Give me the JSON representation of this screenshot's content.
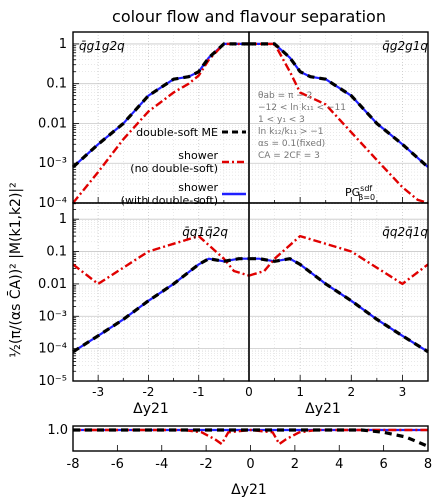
{
  "title": "colour flow and flavour separation",
  "ylabel": "½(π/(αs C̄A))² |M(k1,k2)|²",
  "xlabel": "Δy21",
  "panels": [
    {
      "label": "q̄g1g2q",
      "xlim": [
        -3.5,
        0
      ],
      "ylim_exp": [
        -4,
        0.3
      ]
    },
    {
      "label": "q̄g2g1q",
      "xlim": [
        0,
        3.5
      ],
      "ylim_exp": [
        -4,
        0.3
      ]
    },
    {
      "label": "q̄q1q̄2q",
      "xlim": [
        -3.5,
        0
      ],
      "ylim_exp": [
        -5,
        0.5
      ]
    },
    {
      "label": "q̄q2q̄1q",
      "xlim": [
        0,
        3.5
      ],
      "ylim_exp": [
        -5,
        0.5
      ]
    }
  ],
  "legend": {
    "me": "double-soft ME",
    "shower_no_line1": "shower",
    "shower_no_line2": "(no double-soft)",
    "shower_with_line1": "shower",
    "shower_with_line2": "(with double-soft)",
    "pg_label": "PG",
    "pg_sup": "sdf",
    "pg_sub": "β=0"
  },
  "info_lines": [
    "θab = π − 2",
    "−12 < ln k₁₁ < −11",
    "1 < y₁ < 3",
    "ln k₁₂/k₁₁ > −1",
    "αs = 0.1(fixed)",
    "CA = 2CF = 3"
  ],
  "top_yticks": [
    "1",
    "0.1",
    "0.01",
    "10⁻³",
    "10⁻⁴"
  ],
  "mid_yticks": [
    "1",
    "0.1",
    "0.01",
    "10⁻³",
    "10⁻⁴",
    "10⁻⁵"
  ],
  "mid_xticks": [
    "-3",
    "-2",
    "-1",
    "0",
    "1",
    "2",
    "3"
  ],
  "ratio_xticks": [
    "-8",
    "-6",
    "-4",
    "-2",
    "0",
    "2",
    "4",
    "6",
    "8"
  ],
  "ratio_ytick": "1.0",
  "colors": {
    "me": "#000000",
    "shower_no": "#e00000",
    "shower_with": "#1f1fff",
    "grid": "#c8c8c8"
  },
  "chart_data": [
    {
      "type": "line",
      "panel": "q̄g1g2q",
      "log_y": true,
      "series": [
        {
          "name": "double-soft ME",
          "x": [
            -3.5,
            -3,
            -2.5,
            -2,
            -1.5,
            -1.2,
            -1.0,
            -0.8,
            -0.5,
            -0.2,
            0.0
          ],
          "y": [
            0.0008,
            0.003,
            0.01,
            0.05,
            0.13,
            0.15,
            0.2,
            0.45,
            1.0,
            1.0,
            1.0
          ]
        },
        {
          "name": "shower (no double-soft)",
          "x": [
            -3.5,
            -3,
            -2.5,
            -2,
            -1.5,
            -1.2,
            -1.0,
            -0.8,
            -0.5,
            -0.2,
            0.0
          ],
          "y": [
            0.0001,
            0.0006,
            0.004,
            0.02,
            0.06,
            0.1,
            0.16,
            0.4,
            1.0,
            1.0,
            1.0
          ]
        },
        {
          "name": "shower (with double-soft)",
          "x": [
            -3.5,
            -3,
            -2.5,
            -2,
            -1.5,
            -1.2,
            -1.0,
            -0.8,
            -0.5,
            -0.2,
            0.0
          ],
          "y": [
            0.0008,
            0.003,
            0.01,
            0.05,
            0.13,
            0.15,
            0.2,
            0.45,
            1.0,
            1.0,
            1.0
          ]
        }
      ]
    },
    {
      "type": "line",
      "panel": "q̄g2g1q",
      "log_y": true,
      "series": [
        {
          "name": "double-soft ME",
          "x": [
            0.0,
            0.2,
            0.5,
            0.8,
            1.0,
            1.2,
            1.5,
            2.0,
            2.5,
            3.0,
            3.5
          ],
          "y": [
            1.0,
            1.0,
            1.0,
            0.45,
            0.2,
            0.15,
            0.13,
            0.05,
            0.01,
            0.003,
            0.0008
          ]
        },
        {
          "name": "shower (no double-soft)",
          "x": [
            0.0,
            0.2,
            0.5,
            0.8,
            1.0,
            1.5,
            2.0,
            2.5,
            3.0,
            3.3,
            3.5
          ],
          "y": [
            1.0,
            1.0,
            1.0,
            0.2,
            0.06,
            0.03,
            0.006,
            0.0012,
            0.00025,
            0.00012,
            0.0001
          ]
        },
        {
          "name": "shower (with double-soft)",
          "x": [
            0.0,
            0.2,
            0.5,
            0.8,
            1.0,
            1.2,
            1.5,
            2.0,
            2.5,
            3.0,
            3.5
          ],
          "y": [
            1.0,
            1.0,
            1.0,
            0.45,
            0.2,
            0.15,
            0.13,
            0.05,
            0.01,
            0.003,
            0.0008
          ]
        }
      ]
    },
    {
      "type": "line",
      "panel": "q̄q1q̄2q",
      "log_y": true,
      "series": [
        {
          "name": "double-soft ME",
          "x": [
            -3.5,
            -3,
            -2.5,
            -2,
            -1.5,
            -1.0,
            -0.8,
            -0.5,
            -0.2,
            0.0
          ],
          "y": [
            8e-05,
            0.00025,
            0.0008,
            0.003,
            0.01,
            0.04,
            0.06,
            0.05,
            0.06,
            0.06
          ]
        },
        {
          "name": "shower (no double-soft)",
          "x": [
            -3.5,
            -3,
            -2,
            -1,
            -0.5,
            -0.3,
            0.0
          ],
          "y": [
            0.04,
            0.01,
            0.1,
            0.3,
            0.06,
            0.025,
            0.018
          ]
        },
        {
          "name": "shower (with double-soft)",
          "x": [
            -3.5,
            -3,
            -2.5,
            -2,
            -1.5,
            -1.0,
            -0.8,
            -0.5,
            -0.2,
            0.0
          ],
          "y": [
            8e-05,
            0.00025,
            0.0008,
            0.003,
            0.01,
            0.04,
            0.06,
            0.05,
            0.06,
            0.06
          ]
        }
      ]
    },
    {
      "type": "line",
      "panel": "q̄q2q̄1q",
      "log_y": true,
      "series": [
        {
          "name": "double-soft ME",
          "x": [
            0.0,
            0.2,
            0.5,
            0.8,
            1.0,
            1.5,
            2.0,
            2.5,
            3.0,
            3.5
          ],
          "y": [
            0.06,
            0.06,
            0.05,
            0.06,
            0.04,
            0.01,
            0.003,
            0.0008,
            0.00025,
            8e-05
          ]
        },
        {
          "name": "shower (no double-soft)",
          "x": [
            0.0,
            0.3,
            0.5,
            1.0,
            2.0,
            3.0,
            3.5
          ],
          "y": [
            0.018,
            0.025,
            0.06,
            0.3,
            0.1,
            0.01,
            0.04
          ]
        },
        {
          "name": "shower (with double-soft)",
          "x": [
            0.0,
            0.2,
            0.5,
            0.8,
            1.0,
            1.5,
            2.0,
            2.5,
            3.0,
            3.5
          ],
          "y": [
            0.06,
            0.06,
            0.05,
            0.06,
            0.04,
            0.01,
            0.003,
            0.0008,
            0.00025,
            8e-05
          ]
        }
      ]
    },
    {
      "type": "line",
      "panel": "ratio",
      "xlim": [
        -8,
        8
      ],
      "series": [
        {
          "name": "double-soft ME",
          "x": [
            -8,
            -4,
            0,
            4,
            5,
            6,
            7,
            8
          ],
          "y": [
            1.0,
            1.0,
            1.0,
            1.0,
            1.0,
            0.99,
            0.97,
            0.93
          ]
        },
        {
          "name": "shower (no double-soft)",
          "x": [
            -8,
            -3,
            -2.2,
            -1.6,
            -1.3,
            -1.0,
            0,
            1.0,
            1.3,
            1.6,
            2.2,
            3,
            8
          ],
          "y": [
            1.0,
            1.0,
            0.99,
            0.96,
            0.94,
            0.99,
            1.0,
            0.99,
            0.94,
            0.96,
            0.99,
            1.0,
            1.0
          ]
        },
        {
          "name": "shower (with double-soft)",
          "x": [
            -8,
            8
          ],
          "y": [
            1.0,
            1.0
          ]
        }
      ]
    }
  ]
}
